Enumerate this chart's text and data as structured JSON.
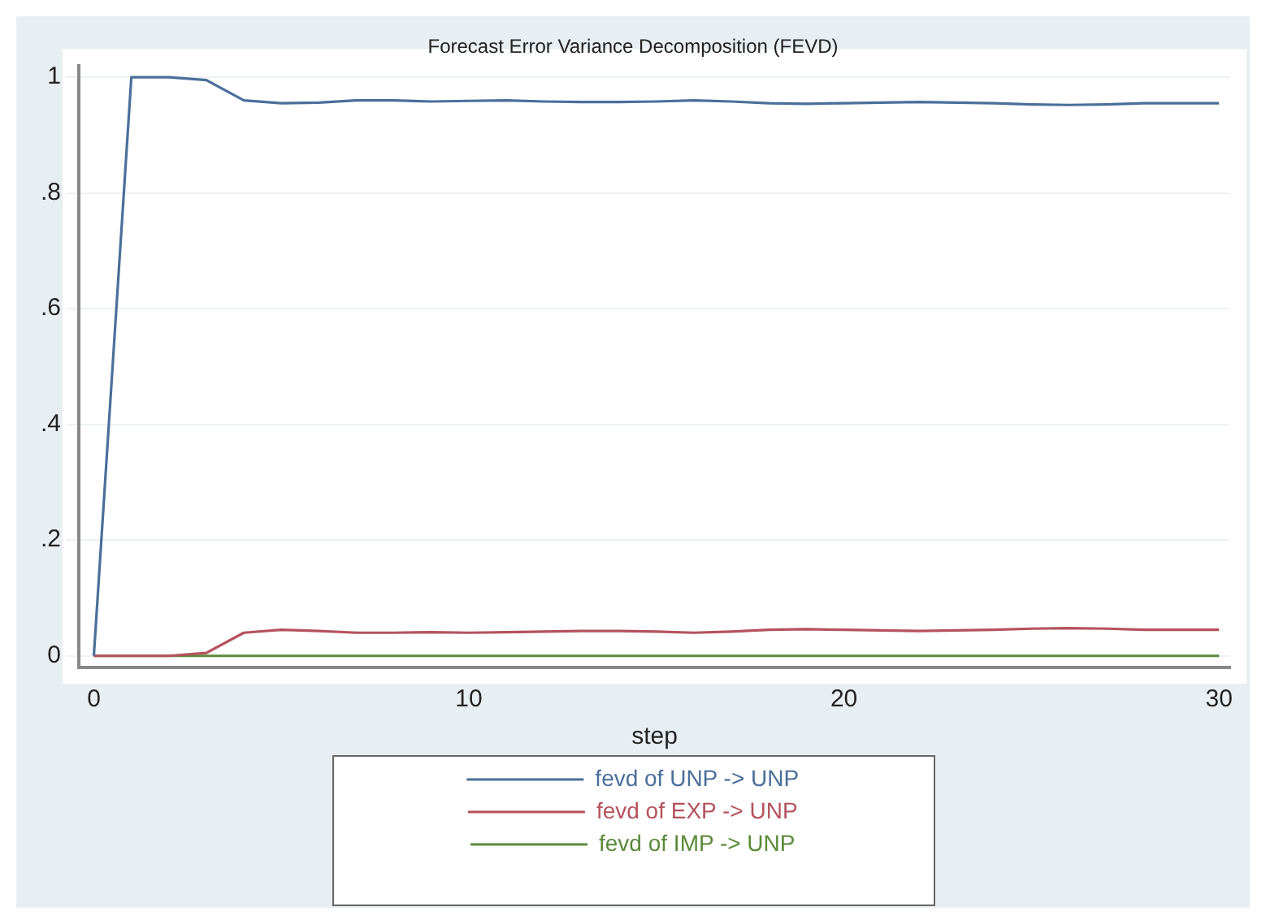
{
  "chart_data": {
    "type": "line",
    "title": "Forecast Error Variance Decomposition (FEVD)",
    "xlabel": "step",
    "x": [
      0,
      1,
      2,
      3,
      4,
      5,
      6,
      7,
      8,
      9,
      10,
      11,
      12,
      13,
      14,
      15,
      16,
      17,
      18,
      19,
      20,
      21,
      22,
      23,
      24,
      25,
      26,
      27,
      28,
      29,
      30
    ],
    "series": [
      {
        "name": "fevd of UNP -> UNP",
        "color": "#4a6f9a",
        "values": [
          0,
          1,
          1,
          0.995,
          0.96,
          0.955,
          0.956,
          0.96,
          0.96,
          0.958,
          0.959,
          0.96,
          0.958,
          0.957,
          0.957,
          0.958,
          0.96,
          0.958,
          0.955,
          0.954,
          0.955,
          0.956,
          0.957,
          0.956,
          0.955,
          0.953,
          0.952,
          0.953,
          0.955,
          0.955,
          0.955
        ]
      },
      {
        "name": "fevd of EXP -> UNP",
        "color": "#b5525e",
        "values": [
          0,
          0,
          0,
          0.005,
          0.04,
          0.045,
          0.043,
          0.04,
          0.04,
          0.041,
          0.04,
          0.041,
          0.042,
          0.043,
          0.043,
          0.042,
          0.04,
          0.042,
          0.045,
          0.046,
          0.045,
          0.044,
          0.043,
          0.044,
          0.045,
          0.047,
          0.048,
          0.047,
          0.045,
          0.045,
          0.045
        ]
      },
      {
        "name": "fevd of IMP -> UNP",
        "color": "#5a8a3a",
        "values": [
          0,
          0,
          0,
          0,
          0,
          0,
          0,
          0,
          0,
          0,
          0,
          0,
          0,
          0,
          0,
          0,
          0,
          0,
          0,
          0,
          0,
          0,
          0,
          0,
          0,
          0,
          0,
          0,
          0,
          0,
          0
        ]
      }
    ],
    "xlim": [
      -0.4,
      30.3
    ],
    "xticks": [
      0,
      10,
      20,
      30
    ],
    "ylim": [
      -0.02,
      1.02
    ],
    "yticks": [
      0,
      {
        "value": 0.2,
        "label": ".2"
      },
      {
        "value": 0.4,
        "label": ".4"
      },
      {
        "value": 0.6,
        "label": ".6"
      },
      {
        "value": 0.8,
        "label": ".8"
      },
      1
    ],
    "grid": "y",
    "legend": "bottom",
    "marker": "none",
    "line_style": "solid"
  }
}
